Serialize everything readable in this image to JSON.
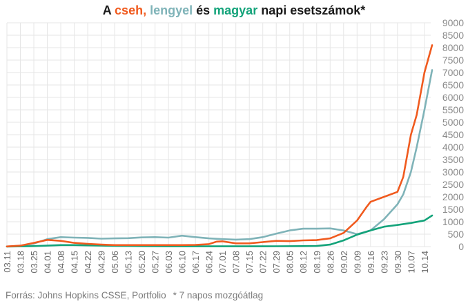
{
  "title": {
    "prefix": "A ",
    "cz": "cseh,",
    "sep1": " ",
    "pl": "lengyel",
    "mid": " és ",
    "hu": "magyar",
    "suffix": " napi esetszámok*"
  },
  "footer": {
    "source": "Forrás: Johns Hopkins CSSE, Portfolio",
    "note": "* 7 napos mozgóátlag"
  },
  "colors": {
    "cz": "#f05a1e",
    "pl": "#7fb3b8",
    "hu": "#13a37a",
    "grid": "#e6e6e6",
    "tick_text": "#8a8a8a"
  },
  "chart_data": {
    "type": "line",
    "title": "A cseh, lengyel és magyar napi esetszámok*",
    "xlabel": "",
    "ylabel": "",
    "ylim": [
      0,
      9000
    ],
    "yticks": [
      0,
      500,
      1000,
      1500,
      2000,
      2500,
      3000,
      3500,
      4000,
      4500,
      5000,
      5500,
      6000,
      6500,
      7000,
      7500,
      8000,
      8500,
      9000
    ],
    "x_start": "2020-03-11",
    "x_end": "2020-10-18",
    "xtick_labels": [
      "03.11",
      "03.18",
      "03.25",
      "04.01",
      "04.08",
      "04.15",
      "04.22",
      "04.29",
      "05.06",
      "05.13",
      "05.20",
      "05.27",
      "06.03",
      "06.10",
      "06.17",
      "06.24",
      "07.01",
      "07.08",
      "07.15",
      "07.22",
      "07.29",
      "08.05",
      "08.12",
      "08.19",
      "08.26",
      "09.02",
      "09.09",
      "09.16",
      "09.23",
      "09.30",
      "10.07",
      "10.14"
    ],
    "grid": true,
    "legend": "none (series named in title colors)",
    "series": [
      {
        "name": "cseh",
        "color": "#f05a1e",
        "points": [
          [
            "2020-03-11",
            5
          ],
          [
            "2020-03-18",
            40
          ],
          [
            "2020-03-25",
            150
          ],
          [
            "2020-04-01",
            270
          ],
          [
            "2020-04-08",
            230
          ],
          [
            "2020-04-15",
            150
          ],
          [
            "2020-04-22",
            110
          ],
          [
            "2020-04-29",
            80
          ],
          [
            "2020-05-06",
            60
          ],
          [
            "2020-05-13",
            60
          ],
          [
            "2020-05-20",
            60
          ],
          [
            "2020-05-27",
            60
          ],
          [
            "2020-06-03",
            60
          ],
          [
            "2020-06-10",
            60
          ],
          [
            "2020-06-17",
            70
          ],
          [
            "2020-06-24",
            100
          ],
          [
            "2020-06-28",
            200
          ],
          [
            "2020-07-01",
            210
          ],
          [
            "2020-07-08",
            130
          ],
          [
            "2020-07-15",
            130
          ],
          [
            "2020-07-22",
            180
          ],
          [
            "2020-07-29",
            230
          ],
          [
            "2020-08-05",
            220
          ],
          [
            "2020-08-12",
            250
          ],
          [
            "2020-08-19",
            260
          ],
          [
            "2020-08-26",
            330
          ],
          [
            "2020-09-02",
            550
          ],
          [
            "2020-09-09",
            1050
          ],
          [
            "2020-09-14",
            1600
          ],
          [
            "2020-09-16",
            1800
          ],
          [
            "2020-09-23",
            2000
          ],
          [
            "2020-09-30",
            2200
          ],
          [
            "2020-10-03",
            2800
          ],
          [
            "2020-10-07",
            4500
          ],
          [
            "2020-10-10",
            5300
          ],
          [
            "2020-10-14",
            7000
          ],
          [
            "2020-10-18",
            8100
          ]
        ]
      },
      {
        "name": "lengyel",
        "color": "#7fb3b8",
        "points": [
          [
            "2020-03-11",
            5
          ],
          [
            "2020-03-18",
            30
          ],
          [
            "2020-03-25",
            120
          ],
          [
            "2020-04-01",
            300
          ],
          [
            "2020-04-08",
            380
          ],
          [
            "2020-04-15",
            360
          ],
          [
            "2020-04-22",
            350
          ],
          [
            "2020-04-29",
            320
          ],
          [
            "2020-05-06",
            330
          ],
          [
            "2020-05-13",
            340
          ],
          [
            "2020-05-20",
            370
          ],
          [
            "2020-05-27",
            380
          ],
          [
            "2020-06-03",
            360
          ],
          [
            "2020-06-10",
            440
          ],
          [
            "2020-06-17",
            380
          ],
          [
            "2020-06-24",
            330
          ],
          [
            "2020-07-01",
            300
          ],
          [
            "2020-07-08",
            280
          ],
          [
            "2020-07-15",
            300
          ],
          [
            "2020-07-22",
            380
          ],
          [
            "2020-07-29",
            520
          ],
          [
            "2020-08-05",
            650
          ],
          [
            "2020-08-12",
            720
          ],
          [
            "2020-08-19",
            720
          ],
          [
            "2020-08-26",
            730
          ],
          [
            "2020-09-02",
            650
          ],
          [
            "2020-09-09",
            500
          ],
          [
            "2020-09-16",
            650
          ],
          [
            "2020-09-23",
            1100
          ],
          [
            "2020-09-30",
            1700
          ],
          [
            "2020-10-03",
            2100
          ],
          [
            "2020-10-07",
            3000
          ],
          [
            "2020-10-10",
            4000
          ],
          [
            "2020-10-14",
            5500
          ],
          [
            "2020-10-18",
            7100
          ]
        ]
      },
      {
        "name": "magyar",
        "color": "#13a37a",
        "points": [
          [
            "2020-03-11",
            2
          ],
          [
            "2020-03-25",
            20
          ],
          [
            "2020-04-01",
            40
          ],
          [
            "2020-04-08",
            60
          ],
          [
            "2020-04-15",
            60
          ],
          [
            "2020-04-22",
            50
          ],
          [
            "2020-04-29",
            40
          ],
          [
            "2020-05-06",
            30
          ],
          [
            "2020-05-13",
            25
          ],
          [
            "2020-05-20",
            20
          ],
          [
            "2020-06-03",
            10
          ],
          [
            "2020-06-17",
            10
          ],
          [
            "2020-07-01",
            10
          ],
          [
            "2020-07-15",
            10
          ],
          [
            "2020-07-29",
            15
          ],
          [
            "2020-08-12",
            20
          ],
          [
            "2020-08-19",
            25
          ],
          [
            "2020-08-26",
            80
          ],
          [
            "2020-09-02",
            250
          ],
          [
            "2020-09-09",
            480
          ],
          [
            "2020-09-16",
            650
          ],
          [
            "2020-09-23",
            800
          ],
          [
            "2020-09-30",
            870
          ],
          [
            "2020-10-07",
            950
          ],
          [
            "2020-10-14",
            1050
          ],
          [
            "2020-10-18",
            1250
          ]
        ]
      }
    ]
  }
}
